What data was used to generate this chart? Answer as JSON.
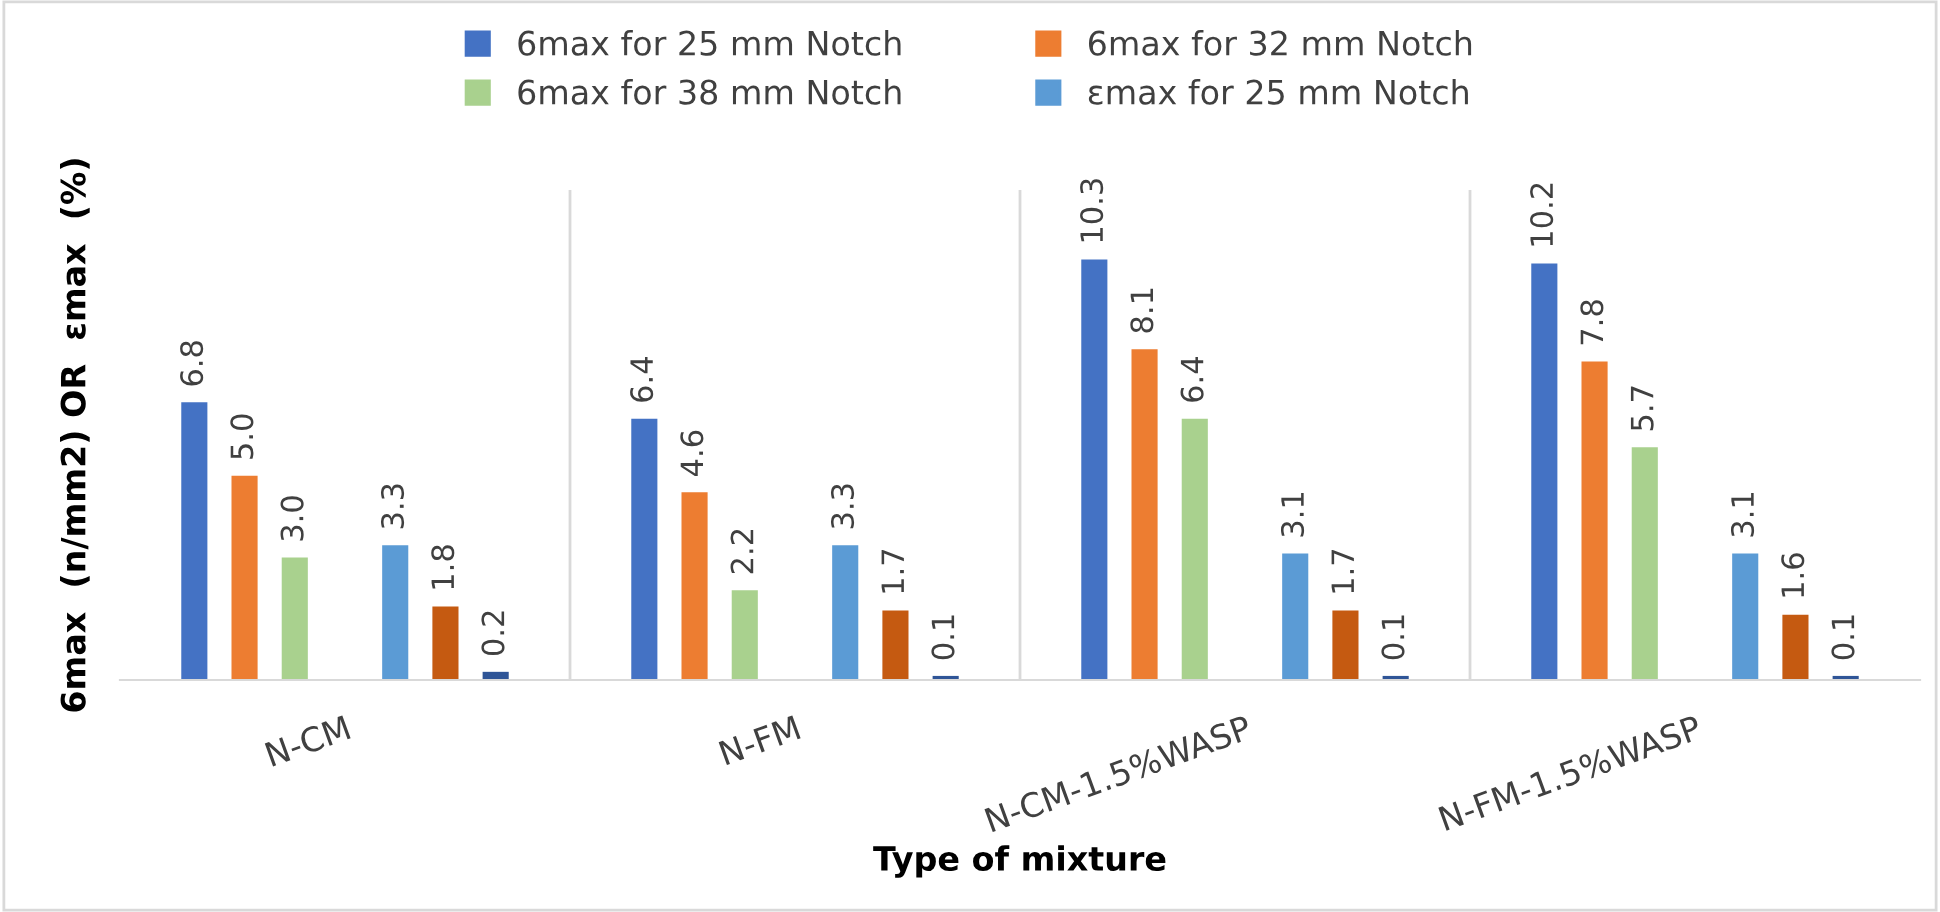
{
  "chart_data": {
    "type": "bar",
    "xlabel": "Type of mixture",
    "ylabel": "6max  (n/mm2) OR  εmax  (%)",
    "categories": [
      "N-CM",
      "N-FM",
      "N-CM-1.5%WASP",
      "N-FM-1.5%WASP"
    ],
    "series": [
      {
        "name": "6max for 25 mm Notch",
        "color": "#4472c4",
        "values": [
          6.8,
          6.4,
          10.3,
          10.2
        ],
        "value_labels": [
          "6.8",
          "6.4",
          "10.3",
          "10.2"
        ]
      },
      {
        "name": "6max for 32 mm Notch",
        "color": "#ed7d31",
        "values": [
          5.0,
          4.6,
          8.1,
          7.8
        ],
        "value_labels": [
          "5.0",
          "4.6",
          "8.1",
          "7.8"
        ]
      },
      {
        "name": "6max for 38 mm Notch",
        "color": "#a9d18e",
        "values": [
          3.0,
          2.2,
          6.4,
          5.7
        ],
        "value_labels": [
          "3.0",
          "2.2",
          "6.4",
          "5.7"
        ]
      },
      {
        "name": "εmax for 25 mm Notch",
        "color": "#5b9bd5",
        "values": [
          3.3,
          3.3,
          3.1,
          3.1
        ],
        "value_labels": [
          "3.3",
          "3.3",
          "3.1",
          "3.1"
        ]
      },
      {
        "color": "#c55a11",
        "values": [
          1.8,
          1.7,
          1.7,
          1.6
        ],
        "value_labels": [
          "1.8",
          "1.7",
          "1.7",
          "1.6"
        ]
      },
      {
        "color": "#2f5597",
        "values": [
          0.2,
          0.1,
          0.1,
          0.1
        ],
        "value_labels": [
          "0.2",
          "0.1",
          "0.1",
          "0.1"
        ]
      }
    ],
    "ylim": [
      0,
      12
    ],
    "grid": "x",
    "legend": "top",
    "tick_labels": "x"
  }
}
